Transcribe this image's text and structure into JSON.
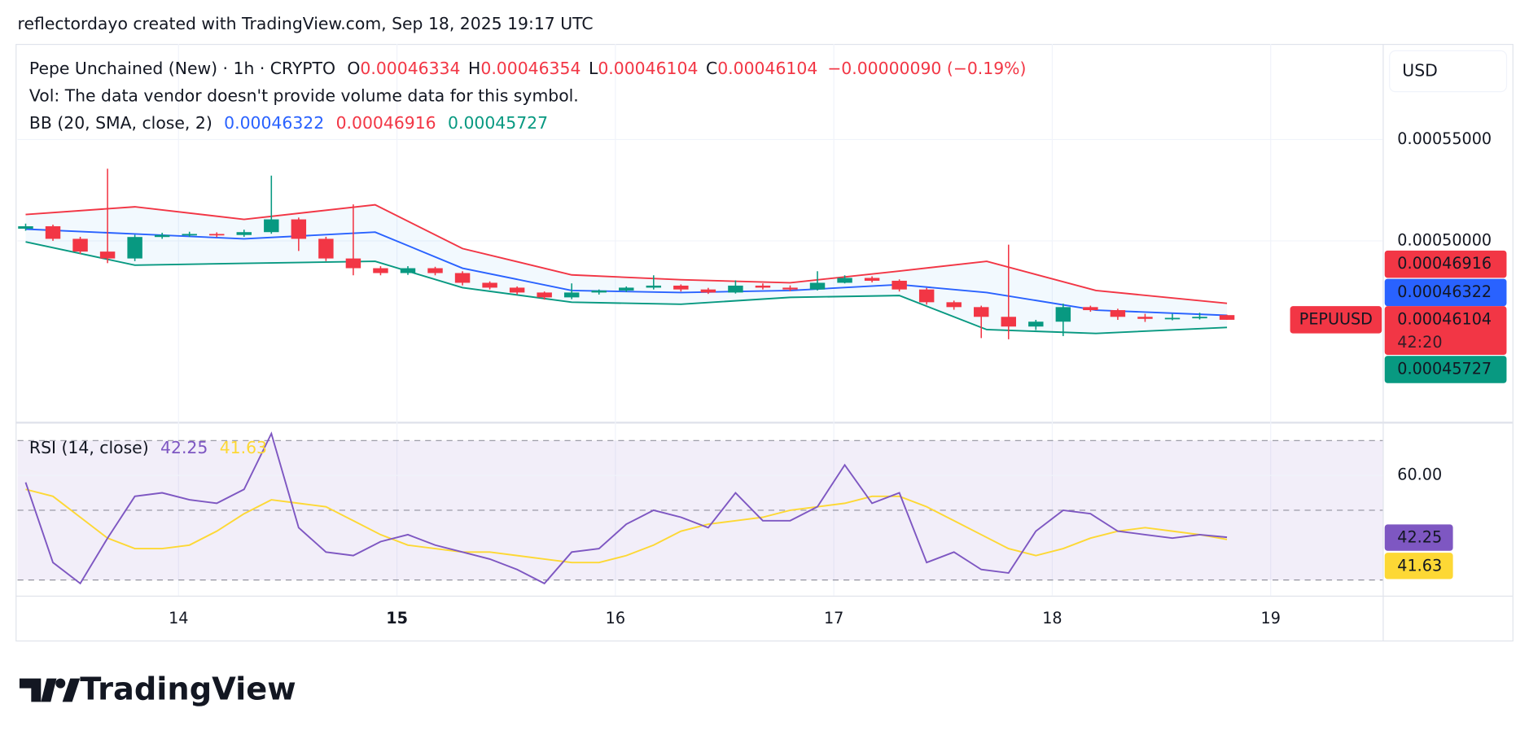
{
  "header": "reflectordayo created with TradingView.com, Sep 18, 2025 19:17 UTC",
  "brand": "TradingView",
  "chart_data": {
    "type": "candlestick",
    "symbol": "Pepe Unchained (New) · 1h · CRYPTO",
    "ohlc_labels": [
      "O",
      "H",
      "L",
      "C"
    ],
    "change": "−0.00000090 (−0.19%)",
    "volume_note": "Vol: The data vendor doesn't provide volume data for this symbol.",
    "currency": "USD",
    "ticker": "PEPUUSD",
    "countdown": "42:20",
    "x": [
      13.3,
      13.425,
      13.55,
      13.675,
      13.8,
      13.925,
      14.05,
      14.175,
      14.3,
      14.425,
      14.55,
      14.675,
      14.8,
      14.925,
      15.05,
      15.175,
      15.3,
      15.425,
      15.55,
      15.675,
      15.8,
      15.925,
      16.05,
      16.175,
      16.3,
      16.425,
      16.55,
      16.675,
      16.8,
      16.925,
      17.05,
      17.175,
      17.3,
      17.425,
      17.55,
      17.675,
      17.8,
      17.925,
      18.05,
      18.175,
      18.3,
      18.425,
      18.55,
      18.675,
      18.8
    ],
    "open": [
      0.000506,
      0.0005072,
      0.000501,
      0.0004947,
      0.0004913,
      0.0005019,
      0.0005029,
      0.0005034,
      0.0005029,
      0.0005043,
      0.0005106,
      0.000501,
      0.0004913,
      0.0004865,
      0.0004841,
      0.0004865,
      0.0004841,
      0.0004793,
      0.0004769,
      0.0004745,
      0.0004721,
      0.0004745,
      0.0004755,
      0.0004769,
      0.0004779,
      0.000476,
      0.0004745,
      0.0004779,
      0.0004769,
      0.000476,
      0.0004793,
      0.0004817,
      0.0004803,
      0.000476,
      0.0004697,
      0.0004673,
      0.0004625,
      0.0004577,
      0.0004601,
      0.0004673,
      0.0004658,
      0.0004625,
      0.0004615,
      0.000462,
      0.00046334
    ],
    "high": [
      0.0005085,
      0.000508,
      0.000502,
      0.0005356,
      0.000503,
      0.000504,
      0.0005045,
      0.0005042,
      0.0005055,
      0.0005322,
      0.0005115,
      0.000502,
      0.000518,
      0.0004875,
      0.0004875,
      0.0004872,
      0.000485,
      0.00048,
      0.0004775,
      0.000475,
      0.000479,
      0.000476,
      0.0004775,
      0.000483,
      0.0004785,
      0.0004768,
      0.0004805,
      0.000479,
      0.000478,
      0.000485,
      0.000483,
      0.0004825,
      0.000481,
      0.0004768,
      0.0004705,
      0.000468,
      0.0004981,
      0.000461,
      0.000469,
      0.000468,
      0.0004665,
      0.000464,
      0.000464,
      0.0004645,
      0.00046354
    ],
    "low": [
      0.000505,
      0.0005,
      0.0004935,
      0.000489,
      0.00049,
      0.000501,
      0.000502,
      0.0005018,
      0.000502,
      0.0005035,
      0.000495,
      0.00049,
      0.000483,
      0.000483,
      0.0004832,
      0.000483,
      0.000478,
      0.000476,
      0.0004735,
      0.000471,
      0.0004712,
      0.0004735,
      0.0004748,
      0.000476,
      0.000475,
      0.0004738,
      0.000474,
      0.000476,
      0.0004752,
      0.0004755,
      0.000479,
      0.0004795,
      0.000475,
      0.0004685,
      0.000466,
      0.000452,
      0.0004514,
      0.000456,
      0.000453,
      0.000465,
      0.000461,
      0.00046,
      0.0004608,
      0.0004612,
      0.00046104
    ],
    "close": [
      0.0005072,
      0.000501,
      0.0004947,
      0.0004913,
      0.0005019,
      0.0005029,
      0.0005034,
      0.0005029,
      0.0005043,
      0.0005106,
      0.000501,
      0.0004913,
      0.0004865,
      0.0004841,
      0.0004865,
      0.0004841,
      0.0004793,
      0.0004769,
      0.0004745,
      0.0004721,
      0.0004745,
      0.0004755,
      0.0004769,
      0.0004779,
      0.000476,
      0.0004745,
      0.0004779,
      0.0004769,
      0.000476,
      0.0004793,
      0.0004817,
      0.0004803,
      0.000476,
      0.0004697,
      0.0004673,
      0.0004625,
      0.0004577,
      0.0004601,
      0.0004673,
      0.0004658,
      0.0004625,
      0.0004615,
      0.000462,
      0.0004625,
      0.00046104
    ],
    "up_color": "#089981",
    "down_color": "#f23645",
    "bb": {
      "label": "BB (20, SMA, close, 2)",
      "x": [
        13.3,
        13.8,
        14.3,
        14.9,
        15.3,
        15.8,
        16.3,
        16.8,
        17.3,
        17.7,
        18.2,
        18.8
      ],
      "series": [
        {
          "name": "basis",
          "color": "#2962ff",
          "values": [
            0.0005058,
            0.0005034,
            0.000501,
            0.0005043,
            0.0004865,
            0.0004755,
            0.0004745,
            0.0004755,
            0.0004784,
            0.0004745,
            0.0004658,
            0.00046322
          ]
        },
        {
          "name": "upper",
          "color": "#f23645",
          "values": [
            0.000513,
            0.0005168,
            0.0005106,
            0.0005178,
            0.0004962,
            0.0004832,
            0.0004808,
            0.0004793,
            0.0004851,
            0.0004899,
            0.0004755,
            0.00046916
          ]
        },
        {
          "name": "lower",
          "color": "#089981",
          "values": [
            0.0004995,
            0.000488,
            0.0004889,
            0.0004899,
            0.0004769,
            0.0004697,
            0.0004687,
            0.0004721,
            0.000473,
            0.0004562,
            0.0004543,
            0.00045727
          ]
        }
      ]
    },
    "xlim": [
      13.263,
      19.513
    ],
    "xticks": [
      14,
      15,
      16,
      17,
      18,
      19
    ],
    "ylim": [
      0.000411,
      0.0005972
    ],
    "yticks": [
      {
        "value": 0.00055,
        "label": "0.00055000"
      },
      {
        "value": 0.0005,
        "label": "0.00050000"
      }
    ],
    "grid": true,
    "rsi": {
      "label": "RSI (14, close)",
      "ylim": [
        25.5,
        75
      ],
      "yticks": [
        {
          "value": 60,
          "label": "60.00"
        }
      ],
      "levels": [
        30,
        50,
        70
      ],
      "series": [
        {
          "name": "rsi",
          "color": "#7e57c2",
          "values": [
            58,
            35,
            29,
            42,
            54,
            55,
            53,
            52,
            56,
            72,
            45,
            38,
            37,
            41,
            43,
            40,
            38,
            36,
            33,
            29,
            38,
            39,
            46,
            50,
            48,
            45,
            55,
            47,
            47,
            51,
            63,
            52,
            55,
            35,
            38,
            33,
            32,
            44,
            50,
            49,
            44,
            43,
            42,
            43,
            42.25
          ]
        },
        {
          "name": "ma",
          "color": "#fdd835",
          "values": [
            56,
            54,
            48,
            42,
            39,
            39,
            40,
            44,
            49,
            53,
            52,
            51,
            47,
            43,
            40,
            39,
            38,
            38,
            37,
            36,
            35,
            35,
            37,
            40,
            44,
            46,
            47,
            48,
            50,
            51,
            52,
            54,
            54,
            51,
            47,
            43,
            39,
            37,
            39,
            42,
            44,
            45,
            44,
            43,
            41.63
          ]
        }
      ]
    }
  }
}
